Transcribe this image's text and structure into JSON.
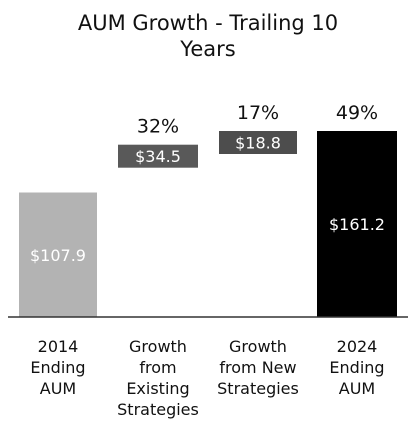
{
  "chart_data": {
    "type": "bar",
    "subtype": "waterfall",
    "title": [
      "AUM Growth - Trailing 10",
      "Years"
    ],
    "categories": [
      [
        "2014",
        "Ending",
        "AUM"
      ],
      [
        "Growth",
        "from",
        "Existing",
        "Strategies"
      ],
      [
        "Growth",
        "from New",
        "Strategies"
      ],
      [
        "2024",
        "Ending",
        "AUM"
      ]
    ],
    "values": [
      107.9,
      34.5,
      18.8,
      161.2
    ],
    "value_labels": [
      "$107.9",
      "$34.5",
      "$18.8",
      "$161.2"
    ],
    "percent_labels": [
      "",
      "32%",
      "17%",
      "49%"
    ],
    "bar_roles": [
      "total",
      "increment",
      "increment",
      "total"
    ],
    "colors": [
      "#b3b3b3",
      "#595959",
      "#4d4d4d",
      "#000000"
    ],
    "xlabel": "",
    "ylabel": "",
    "ylim": [
      0,
      161.2
    ],
    "grid": false,
    "legend": false
  }
}
